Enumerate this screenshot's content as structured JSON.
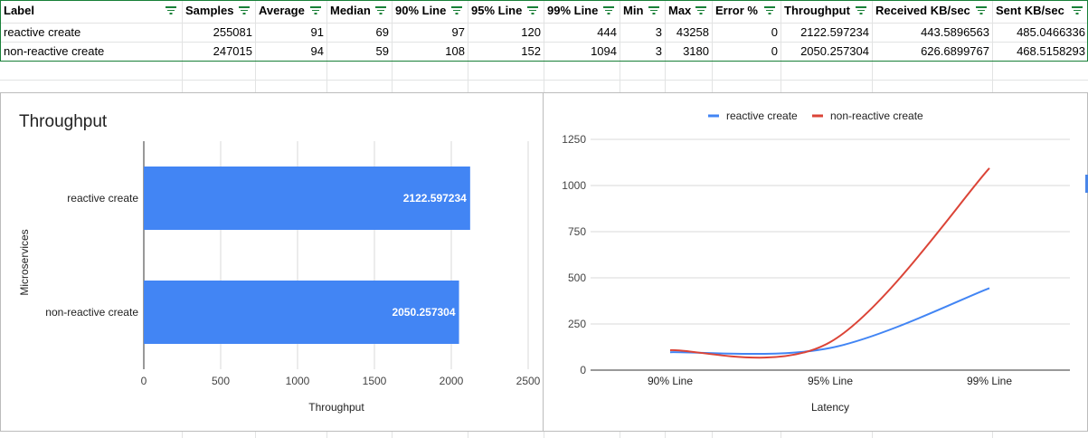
{
  "table": {
    "columns": [
      "Label",
      "Samples",
      "Average",
      "Median",
      "90% Line",
      "95% Line",
      "99% Line",
      "Min",
      "Max",
      "Error %",
      "Throughput",
      "Received KB/sec",
      "Sent KB/sec"
    ],
    "rows": [
      [
        "reactive create",
        "255081",
        "91",
        "69",
        "97",
        "120",
        "444",
        "3",
        "43258",
        "0",
        "2122.597234",
        "443.5896563",
        "485.0466336"
      ],
      [
        "non-reactive create",
        "247015",
        "94",
        "59",
        "108",
        "152",
        "1094",
        "3",
        "3180",
        "0",
        "2050.257304",
        "626.6899767",
        "468.5158293"
      ]
    ]
  },
  "chart_data": [
    {
      "type": "bar",
      "orientation": "horizontal",
      "title": "Throughput",
      "xlabel": "Throughput",
      "ylabel": "Microservices",
      "categories": [
        "reactive create",
        "non-reactive create"
      ],
      "values": [
        2122.597234,
        2050.257304
      ],
      "data_labels": [
        "2122.597234",
        "2050.257304"
      ],
      "xlim": [
        0,
        2500
      ],
      "xticks": [
        "0",
        "500",
        "1000",
        "1500",
        "2000",
        "2500"
      ],
      "grid": true,
      "colors": {
        "bar": "#4285f4"
      }
    },
    {
      "type": "line",
      "xlabel": "Latency",
      "categories": [
        "90% Line",
        "95% Line",
        "99% Line"
      ],
      "series": [
        {
          "name": "reactive create",
          "values": [
            97,
            120,
            444
          ],
          "color": "#4285f4"
        },
        {
          "name": "non-reactive create",
          "values": [
            108,
            152,
            1094
          ],
          "color": "#db4437"
        }
      ],
      "ylim": [
        0,
        1250
      ],
      "yticks": [
        "0",
        "250",
        "500",
        "750",
        "1000",
        "1250"
      ],
      "legend": "top",
      "grid": true,
      "smooth": true
    }
  ],
  "colors": {
    "filter_icon": "#188038",
    "grid_line": "#e2e3e3",
    "chart_border": "#bcbcbc"
  }
}
